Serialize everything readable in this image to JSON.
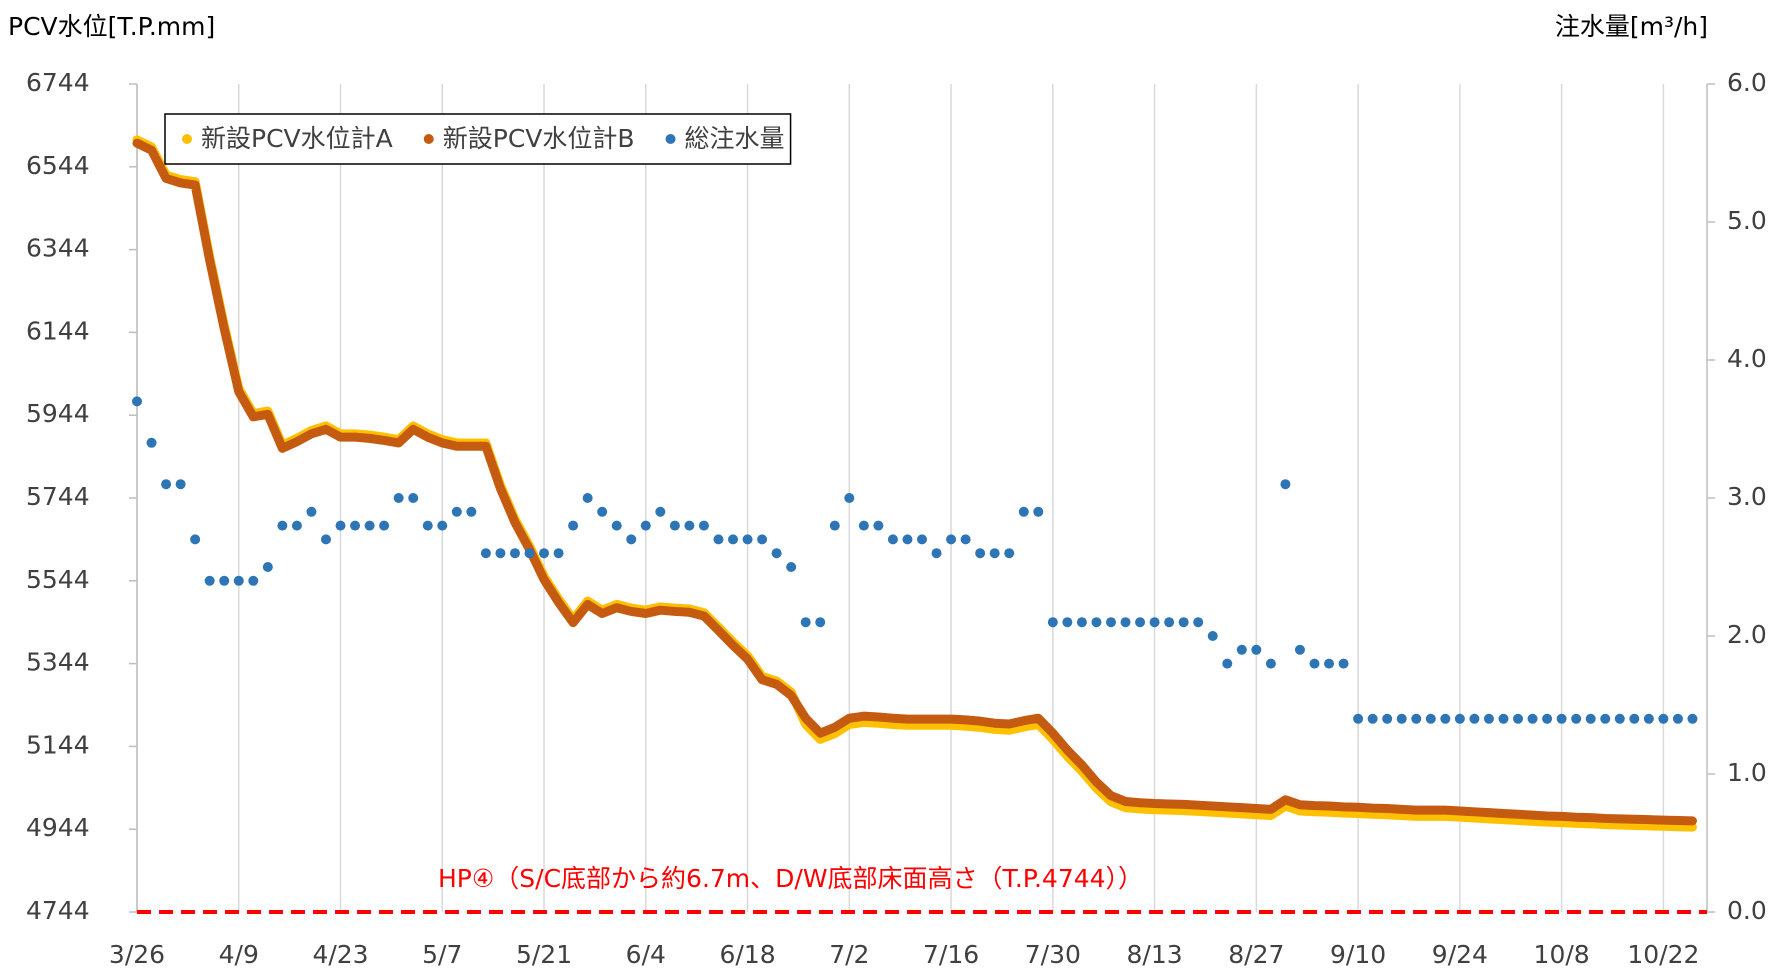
{
  "chart_data": {
    "type": "line",
    "ylabel": "PCV水位[T.P.mm]",
    "y2label": "注水量[m³/h]",
    "x": [
      0,
      2,
      4,
      6,
      8,
      10,
      12,
      14,
      16,
      18,
      20,
      22,
      24,
      26,
      28,
      30,
      32,
      34,
      36,
      38,
      40,
      42,
      44,
      46,
      48,
      50,
      52,
      54,
      56,
      58,
      60,
      62,
      64,
      66,
      68,
      70,
      72,
      74,
      76,
      78,
      80,
      82,
      84,
      86,
      88,
      90,
      92,
      94,
      96,
      98,
      100,
      102,
      104,
      106,
      108,
      110,
      112,
      114,
      116,
      118,
      120,
      122,
      124,
      126,
      128,
      130,
      132,
      134,
      136,
      138,
      140,
      142,
      144,
      146,
      148,
      150,
      152,
      154,
      156,
      158,
      160,
      162,
      164,
      166,
      168,
      170,
      172,
      174,
      176,
      178,
      180,
      182,
      184,
      186,
      188,
      190,
      192,
      194,
      196,
      198,
      200,
      202,
      204,
      206,
      208,
      210,
      212,
      214
    ],
    "xlim": [
      0,
      216
    ],
    "xticks": [
      {
        "value": 0,
        "label": "3/26"
      },
      {
        "value": 14,
        "label": "4/9"
      },
      {
        "value": 28,
        "label": "4/23"
      },
      {
        "value": 42,
        "label": "5/7"
      },
      {
        "value": 56,
        "label": "5/21"
      },
      {
        "value": 70,
        "label": "6/4"
      },
      {
        "value": 84,
        "label": "6/18"
      },
      {
        "value": 98,
        "label": "7/2"
      },
      {
        "value": 112,
        "label": "7/16"
      },
      {
        "value": 126,
        "label": "7/30"
      },
      {
        "value": 140,
        "label": "8/13"
      },
      {
        "value": 154,
        "label": "8/27"
      },
      {
        "value": 168,
        "label": "9/10"
      },
      {
        "value": 182,
        "label": "9/24"
      },
      {
        "value": 196,
        "label": "10/8"
      },
      {
        "value": 210,
        "label": "10/22"
      }
    ],
    "ylim": [
      4744,
      6744
    ],
    "yticks": [
      4744,
      4944,
      5144,
      5344,
      5544,
      5744,
      5944,
      6144,
      6344,
      6544,
      6744
    ],
    "y2lim": [
      0,
      6
    ],
    "y2ticks": [
      {
        "value": 0,
        "label": "0.0"
      },
      {
        "value": 1,
        "label": "1.0"
      },
      {
        "value": 2,
        "label": "2.0"
      },
      {
        "value": 3,
        "label": "3.0"
      },
      {
        "value": 4,
        "label": "4.0"
      },
      {
        "value": 5,
        "label": "5.0"
      },
      {
        "value": 6,
        "label": "6.0"
      }
    ],
    "grid": "x",
    "legend": "upper left",
    "series": [
      {
        "name": "新設PCV水位計A",
        "color": "#ffc000",
        "kind": "line",
        "values": [
          6609,
          6592,
          6524,
          6513,
          6508,
          6326,
          6161,
          6009,
          5948,
          5954,
          5872,
          5888,
          5907,
          5918,
          5899,
          5899,
          5896,
          5891,
          5885,
          5918,
          5899,
          5885,
          5877,
          5877,
          5877,
          5775,
          5693,
          5628,
          5555,
          5500,
          5451,
          5495,
          5473,
          5487,
          5478,
          5473,
          5481,
          5478,
          5476,
          5467,
          5432,
          5396,
          5363,
          5313,
          5302,
          5275,
          5197,
          5161,
          5175,
          5197,
          5202,
          5200,
          5197,
          5195,
          5195,
          5195,
          5195,
          5193,
          5190,
          5185,
          5183,
          5191,
          5197,
          5161,
          5120,
          5084,
          5043,
          5010,
          4996,
          4993,
          4991,
          4990,
          4989,
          4987,
          4985,
          4983,
          4981,
          4979,
          4977,
          5000,
          4988,
          4986,
          4985,
          4983,
          4982,
          4980,
          4979,
          4977,
          4975,
          4975,
          4975,
          4973,
          4971,
          4969,
          4967,
          4965,
          4963,
          4961,
          4960,
          4958,
          4957,
          4955,
          4954,
          4953,
          4952,
          4951,
          4950,
          4949
        ]
      },
      {
        "name": "新設PCV水位計B",
        "color": "#c55a11",
        "kind": "line",
        "values": [
          6601,
          6584,
          6516,
          6505,
          6500,
          6318,
          6153,
          6001,
          5940,
          5946,
          5864,
          5880,
          5899,
          5910,
          5891,
          5891,
          5888,
          5883,
          5877,
          5910,
          5891,
          5877,
          5869,
          5869,
          5869,
          5767,
          5685,
          5620,
          5547,
          5492,
          5443,
          5487,
          5465,
          5479,
          5470,
          5465,
          5473,
          5470,
          5468,
          5459,
          5424,
          5388,
          5355,
          5305,
          5294,
          5267,
          5212,
          5176,
          5190,
          5212,
          5217,
          5215,
          5212,
          5210,
          5210,
          5210,
          5210,
          5208,
          5205,
          5200,
          5198,
          5206,
          5212,
          5176,
          5135,
          5099,
          5058,
          5025,
          5011,
          5008,
          5006,
          5005,
          5004,
          5002,
          5000,
          4998,
          4996,
          4994,
          4992,
          5015,
          5003,
          5001,
          5000,
          4998,
          4997,
          4995,
          4994,
          4992,
          4990,
          4990,
          4990,
          4988,
          4986,
          4984,
          4982,
          4980,
          4978,
          4976,
          4975,
          4973,
          4972,
          4970,
          4969,
          4968,
          4967,
          4966,
          4965,
          4964
        ]
      },
      {
        "name": "総注水量",
        "color": "#2e75b6",
        "kind": "scatter",
        "axis": "y2",
        "values": [
          3.7,
          3.4,
          3.1,
          3.1,
          2.7,
          2.4,
          2.4,
          2.4,
          2.4,
          2.5,
          2.8,
          2.8,
          2.9,
          2.7,
          2.8,
          2.8,
          2.8,
          2.8,
          3.0,
          3.0,
          2.8,
          2.8,
          2.9,
          2.9,
          2.6,
          2.6,
          2.6,
          2.6,
          2.6,
          2.6,
          2.8,
          3.0,
          2.9,
          2.8,
          2.7,
          2.8,
          2.9,
          2.8,
          2.8,
          2.8,
          2.7,
          2.7,
          2.7,
          2.7,
          2.6,
          2.5,
          2.1,
          2.1,
          2.8,
          3.0,
          2.8,
          2.8,
          2.7,
          2.7,
          2.7,
          2.6,
          2.7,
          2.7,
          2.6,
          2.6,
          2.6,
          2.9,
          2.9,
          2.1,
          2.1,
          2.1,
          2.1,
          2.1,
          2.1,
          2.1,
          2.1,
          2.1,
          2.1,
          2.1,
          2.0,
          1.8,
          1.9,
          1.9,
          1.8,
          3.1,
          1.9,
          1.8,
          1.8,
          1.8,
          1.4,
          1.4,
          1.4,
          1.4,
          1.4,
          1.4,
          1.4,
          1.4,
          1.4,
          1.4,
          1.4,
          1.4,
          1.4,
          1.4,
          1.4,
          1.4,
          1.4,
          1.4,
          1.4,
          1.4,
          1.4,
          1.4,
          1.4,
          1.4
        ]
      }
    ],
    "reference_line": {
      "value": 4744,
      "color": "#ff0000",
      "label": "HP④（S/C底部から約6.7m、D/W底部床面高さ（T.P.4744））"
    }
  }
}
